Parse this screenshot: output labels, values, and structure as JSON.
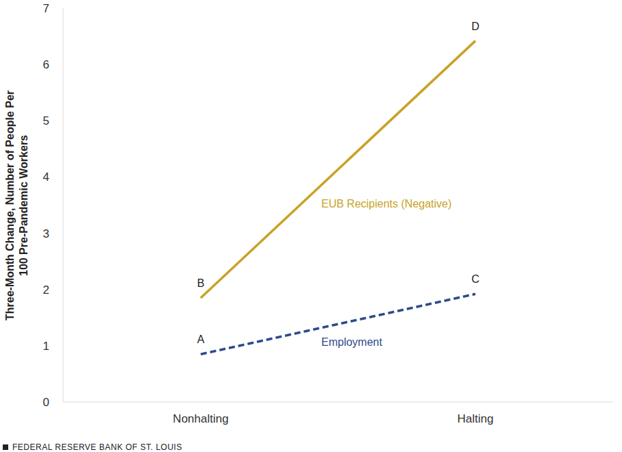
{
  "chart_data": {
    "type": "line",
    "categories": [
      "Nonhalting",
      "Halting"
    ],
    "series": [
      {
        "name": "EUB Recipients (Negative)",
        "color": "#c9a227",
        "line_style": "solid",
        "values": [
          1.85,
          6.42
        ]
      },
      {
        "name": "Employment",
        "color": "#2e4a8b",
        "line_style": "dashed",
        "values": [
          0.85,
          1.92
        ]
      }
    ],
    "ylabel": "Three-Month Change, Number of People Per 100 Pre-Pandemic Workers",
    "ylim": [
      0,
      7
    ],
    "yticks": [
      0,
      1,
      2,
      3,
      4,
      5,
      6,
      7
    ],
    "grid": false,
    "annotations": [
      {
        "text": "A",
        "series": "Employment",
        "category": "Nonhalting"
      },
      {
        "text": "B",
        "series": "EUB Recipients (Negative)",
        "category": "Nonhalting"
      },
      {
        "text": "C",
        "series": "Employment",
        "category": "Halting"
      },
      {
        "text": "D",
        "series": "EUB Recipients (Negative)",
        "category": "Halting"
      }
    ],
    "source": "FEDERAL RESERVE BANK OF ST. LOUIS"
  }
}
